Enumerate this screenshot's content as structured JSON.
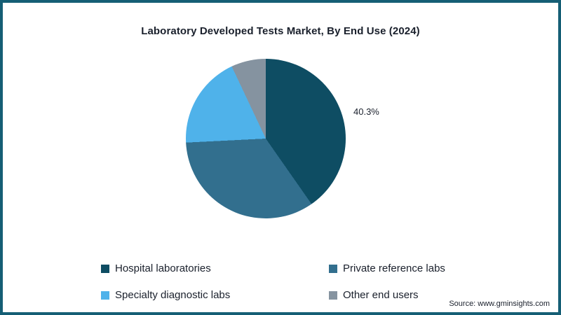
{
  "chart": {
    "title": "Laboratory Developed Tests Market, By End Use (2024)",
    "source": "Source: www.gminsights.com",
    "visible_data_label": "40.3%"
  },
  "chart_data": {
    "type": "pie",
    "title": "Laboratory Developed Tests Market, By End Use (2024)",
    "categories": [
      "Hospital laboratories",
      "Private reference labs",
      "Specialty diagnostic labs",
      "Other end users"
    ],
    "values": [
      40.3,
      33.9,
      18.8,
      7.0
    ],
    "colors": [
      "#0e4d63",
      "#326f8e",
      "#4fb2ea",
      "#8593a0"
    ],
    "data_labels": [
      "40.3%",
      "",
      "",
      ""
    ],
    "legend_position": "bottom",
    "start_angle_deg": 0,
    "direction": "clockwise",
    "annotations": [
      {
        "text": "40.3%",
        "slice": "Hospital laboratories",
        "position": "right-of-pie"
      }
    ],
    "frame_border_color": "#155e75"
  }
}
